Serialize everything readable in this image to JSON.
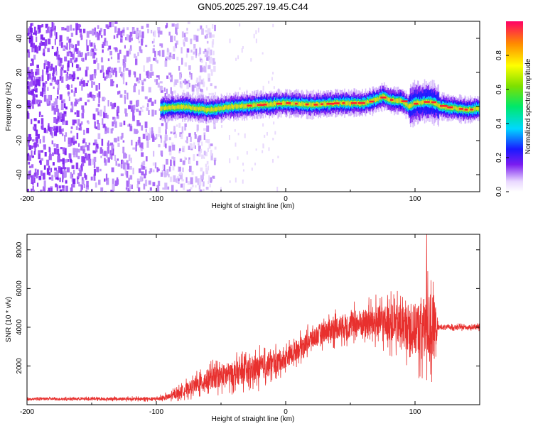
{
  "title": "GN05.2025.297.19.45.C44",
  "chart_data": [
    {
      "type": "heatmap",
      "name": "spectrogram",
      "xlabel": "Height of straight line (km)",
      "ylabel": "Frequency (Hz)",
      "xlim": [
        -200,
        150
      ],
      "ylim": [
        -50,
        50
      ],
      "xticks": [
        -200,
        -100,
        0,
        100
      ],
      "yticks": [
        -40,
        -20,
        0,
        20,
        40
      ],
      "noise_region_x": [
        -200,
        -65
      ],
      "signal_start_x": -97,
      "ridge": {
        "x": [
          -97,
          -80,
          -60,
          -40,
          -20,
          0,
          20,
          40,
          60,
          70,
          75,
          80,
          90,
          95,
          100,
          110,
          115,
          120,
          130,
          140,
          150
        ],
        "y": [
          -1,
          0,
          -2,
          0,
          1,
          2,
          1,
          2,
          2,
          4,
          6,
          4,
          3,
          0,
          2,
          3,
          2,
          0,
          -1,
          -2,
          -1
        ]
      },
      "colorbar": {
        "label": "Normalized spectral amplitude",
        "range": [
          0.0,
          1.0
        ],
        "ticks": [
          0.0,
          0.2,
          0.4,
          0.6,
          0.8
        ]
      }
    },
    {
      "type": "line",
      "name": "snr",
      "xlabel": "Height of straight line (km)",
      "ylabel": "SNR (10 * v/v)",
      "xlim": [
        -200,
        150
      ],
      "ylim": [
        0,
        8800
      ],
      "xticks": [
        -200,
        -100,
        0,
        100
      ],
      "yticks": [
        2000,
        4000,
        6000,
        8000
      ],
      "color": "#e8302e",
      "envelope": {
        "x": [
          -200,
          -100,
          -90,
          -80,
          -70,
          -60,
          -50,
          -40,
          -30,
          -20,
          -10,
          0,
          10,
          20,
          30,
          40,
          50,
          60,
          70,
          80,
          90,
          100,
          105,
          110,
          115,
          118,
          120,
          130,
          140,
          150
        ],
        "mean": [
          300,
          300,
          400,
          700,
          1000,
          1300,
          1500,
          1600,
          1700,
          1900,
          2100,
          2400,
          2900,
          3400,
          3800,
          4000,
          4100,
          4200,
          4300,
          4200,
          4100,
          3900,
          3900,
          4000,
          4000,
          4000,
          4000,
          4000,
          4000,
          4000
        ],
        "spread": [
          100,
          150,
          300,
          500,
          700,
          1000,
          1000,
          1100,
          1100,
          1200,
          1000,
          900,
          900,
          900,
          1000,
          1100,
          1200,
          1300,
          1500,
          1700,
          1900,
          2400,
          2800,
          3200,
          3000,
          300,
          200,
          200,
          200,
          200
        ]
      },
      "peak": {
        "x": 109,
        "y": 8800
      }
    }
  ]
}
